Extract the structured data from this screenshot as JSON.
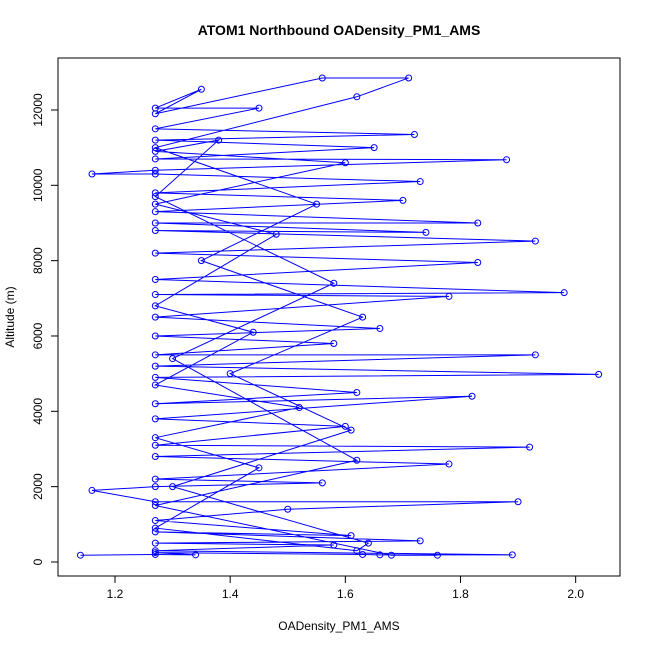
{
  "chart_data": {
    "type": "line",
    "title": "ATOM1 Northbound OADensity_PM1_AMS",
    "x_label": "OADensity_PM1_AMS",
    "y_label": "Altitude (m)",
    "color": "#0000ff",
    "markers": true,
    "x": [
      1.14,
      1.27,
      1.34,
      1.27,
      1.63,
      1.66,
      1.89,
      1.27,
      1.58,
      1.27,
      1.73,
      1.27,
      1.61,
      1.27,
      1.5,
      1.9,
      1.27,
      1.16,
      1.27,
      1.56,
      1.27,
      1.78,
      1.27,
      1.92,
      1.27,
      1.6,
      1.27,
      1.82,
      1.27,
      1.62,
      1.27,
      2.04,
      1.27,
      1.93,
      1.27,
      1.58,
      1.27,
      1.66,
      1.27,
      1.78,
      1.27,
      1.98,
      1.27,
      1.83,
      1.27,
      1.93,
      1.27,
      1.74,
      1.27,
      1.83,
      1.27,
      1.7,
      1.27,
      1.73,
      1.27,
      1.16,
      1.27,
      1.88,
      1.27,
      1.65,
      1.27,
      1.72,
      1.27,
      1.45,
      1.27,
      1.35,
      1.27,
      1.56,
      1.71,
      1.62,
      1.27,
      1.55,
      1.35,
      1.63,
      1.4,
      1.61,
      1.3,
      1.64,
      1.62,
      1.27,
      1.45,
      1.27,
      1.52,
      1.27,
      1.44,
      1.27,
      1.48,
      1.27,
      1.6,
      1.27,
      1.38,
      1.27,
      1.58,
      1.3,
      1.62,
      1.27,
      1.68,
      1.76
    ],
    "values": [
      180,
      200,
      190,
      250,
      200,
      190,
      190,
      300,
      450,
      500,
      560,
      800,
      700,
      1100,
      1400,
      1600,
      1600,
      1900,
      2000,
      2100,
      2200,
      2600,
      2800,
      3050,
      3100,
      3600,
      3800,
      4400,
      4200,
      4500,
      4900,
      4980,
      5200,
      5500,
      5500,
      5800,
      6000,
      6200,
      6500,
      7050,
      7100,
      7150,
      7500,
      7950,
      8200,
      8520,
      8800,
      8750,
      9000,
      9000,
      9300,
      9600,
      9800,
      10100,
      10300,
      10300,
      10400,
      10680,
      10700,
      11000,
      11200,
      11350,
      11500,
      12050,
      12050,
      12550,
      11900,
      12850,
      12850,
      12350,
      11000,
      9500,
      8000,
      6500,
      5000,
      3500,
      2000,
      500,
      300,
      900,
      2500,
      3300,
      4100,
      4700,
      6100,
      6800,
      8700,
      9500,
      10600,
      10900,
      11200,
      9700,
      7400,
      5400,
      2700,
      1500,
      180,
      180
    ],
    "xlim": [
      1.101,
      2.077
    ],
    "ylim": [
      -372,
      13380
    ],
    "xticks": [
      1.2,
      1.4,
      1.6,
      1.8,
      {
        "value": 2,
        "label": "2.0"
      }
    ],
    "yticks": [
      0,
      2000,
      4000,
      6000,
      8000,
      10000,
      12000
    ]
  }
}
